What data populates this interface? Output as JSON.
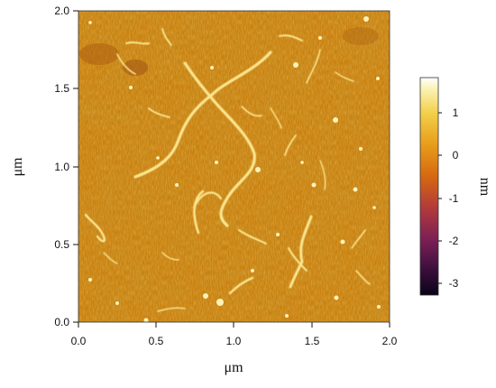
{
  "image": {
    "subject": "AFM height map of filamentous strands on a textured surface",
    "x_axis_label": "μm",
    "y_axis_label": "μm",
    "x_ticks": [
      "0.0",
      "0.5",
      "1.0",
      "1.5",
      "2.0"
    ],
    "y_ticks": [
      "2.0",
      "1.5",
      "1.0",
      "0.5",
      "0.0"
    ],
    "x_range": [
      0,
      2
    ],
    "y_range": [
      0,
      2
    ],
    "colorbar": {
      "unit_label": "nm",
      "ticks": [
        "1",
        "0",
        "-1",
        "-2",
        "-3"
      ],
      "range": [
        -3.4,
        1.8
      ],
      "colors": [
        "#0a0318",
        "#3c0f3d",
        "#7a1f55",
        "#b23a3b",
        "#d66a10",
        "#e9a01c",
        "#f2d14d",
        "#fbf3b6",
        "#ffffff"
      ]
    },
    "background_color": "#c8800f"
  }
}
